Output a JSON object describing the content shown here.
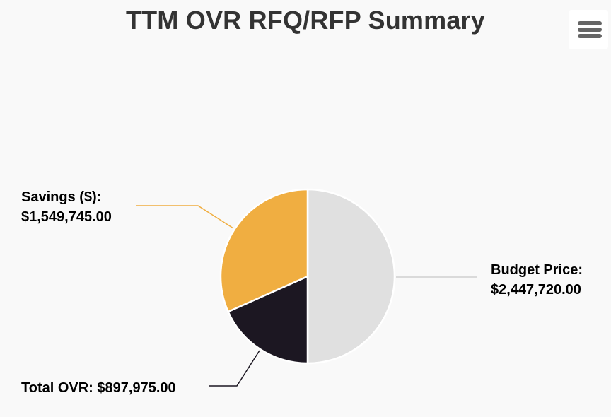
{
  "menu": {
    "icon": "hamburger-menu-icon"
  },
  "chart_data": {
    "type": "pie",
    "title": "TTM OVR RFQ/RFP Summary",
    "slices": [
      {
        "name": "Budget Price",
        "value": 2447720.0,
        "label_name": "Budget Price:",
        "label_value": "$2,447,720.00",
        "color": "#e0e0e0",
        "connector_color": "#d0d0d0"
      },
      {
        "name": "Total OVR",
        "value": 897975.0,
        "label_text": "Total OVR: $897,975.00",
        "color": "#1c1722",
        "connector_color": "#1c1722"
      },
      {
        "name": "Savings ($)",
        "value": 1549745.0,
        "label_name": "Savings ($):",
        "label_value": "$1,549,745.00",
        "color": "#f0ae41",
        "connector_color": "#f0ae41"
      }
    ],
    "start_angle_deg": 0,
    "direction": "clockwise",
    "legend": "none"
  }
}
